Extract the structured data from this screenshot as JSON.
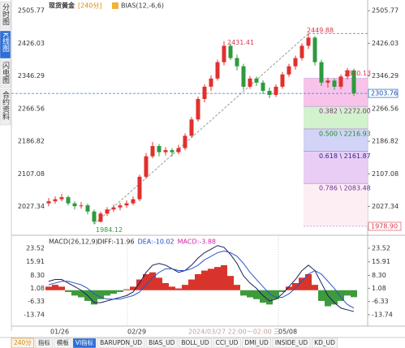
{
  "chart_data": {
    "type": "candlestick",
    "instrument": "现货黄金",
    "period": "[240分]",
    "indicator": "BIAS(12,-6,6)",
    "up_color": "#e0302e",
    "down_color": "#2e9a3e",
    "ylim": [
      1961,
      2522
    ],
    "yticks": [
      2505.77,
      2426.03,
      2346.29,
      2266.56,
      2186.82,
      2107.08,
      2027.34
    ],
    "candles": [
      [
        2035,
        2048,
        2028,
        2040
      ],
      [
        2040,
        2052,
        2034,
        2045
      ],
      [
        2045,
        2058,
        2040,
        2050
      ],
      [
        2050,
        2054,
        2030,
        2035
      ],
      [
        2035,
        2040,
        2020,
        2028
      ],
      [
        2028,
        2038,
        2022,
        2030
      ],
      [
        2030,
        2034,
        2008,
        2015
      ],
      [
        2015,
        2020,
        1984.12,
        1990
      ],
      [
        1990,
        2015,
        1988,
        2010
      ],
      [
        2010,
        2026,
        2004,
        2020
      ],
      [
        2020,
        2032,
        2014,
        2025
      ],
      [
        2025,
        2036,
        2018,
        2030
      ],
      [
        2030,
        2042,
        2024,
        2035
      ],
      [
        2035,
        2052,
        2030,
        2045
      ],
      [
        2045,
        2105,
        2040,
        2100
      ],
      [
        2100,
        2158,
        2095,
        2150
      ],
      [
        2150,
        2185,
        2145,
        2175
      ],
      [
        2175,
        2180,
        2150,
        2160
      ],
      [
        2160,
        2172,
        2152,
        2165
      ],
      [
        2165,
        2170,
        2150,
        2160
      ],
      [
        2160,
        2178,
        2155,
        2170
      ],
      [
        2170,
        2206,
        2165,
        2200
      ],
      [
        2200,
        2246,
        2195,
        2240
      ],
      [
        2240,
        2296,
        2235,
        2290
      ],
      [
        2290,
        2326,
        2282,
        2320
      ],
      [
        2320,
        2348,
        2310,
        2340
      ],
      [
        2340,
        2386,
        2335,
        2380
      ],
      [
        2380,
        2431.41,
        2372,
        2420
      ],
      [
        2420,
        2425,
        2385,
        2390
      ],
      [
        2390,
        2398,
        2360,
        2370
      ],
      [
        2370,
        2376,
        2312,
        2320
      ],
      [
        2320,
        2346,
        2315,
        2340
      ],
      [
        2340,
        2345,
        2322,
        2330
      ],
      [
        2330,
        2336,
        2302,
        2310
      ],
      [
        2310,
        2318,
        2292,
        2300
      ],
      [
        2300,
        2326,
        2295,
        2320
      ],
      [
        2320,
        2356,
        2315,
        2350
      ],
      [
        2350,
        2376,
        2344,
        2370
      ],
      [
        2370,
        2396,
        2362,
        2390
      ],
      [
        2390,
        2426,
        2384,
        2420
      ],
      [
        2420,
        2449.88,
        2412,
        2440
      ],
      [
        2440,
        2444,
        2372,
        2380
      ],
      [
        2380,
        2386,
        2322,
        2330
      ],
      [
        2330,
        2342,
        2318,
        2335
      ],
      [
        2335,
        2340,
        2312,
        2320
      ],
      [
        2320,
        2350,
        2314,
        2345
      ],
      [
        2345,
        2366,
        2338,
        2360
      ],
      [
        2360,
        2364,
        2298,
        2303.76
      ]
    ],
    "fib": {
      "levels": [
        2340.13,
        {
          "value": 2272,
          "label": "0.382 \\ 2272.00"
        },
        {
          "value": 2216.93,
          "label": "0.500 \\ 2216.93"
        },
        {
          "value": 2161.87,
          "label": "0.618 \\ 2161.87"
        },
        {
          "value": 2083.48,
          "label": "0.786 \\ 2083.48"
        },
        {
          "value": 1978.9,
          "label": "1978.90"
        }
      ],
      "colors": [
        "#f7b9e6",
        "#c9f0c4",
        "#c9cdf5",
        "#e6c4f3",
        "#fdebf2"
      ]
    },
    "macd": {
      "title": "MACD(26,12,9)",
      "ylim": [
        -19.2,
        28.06
      ],
      "yticks": [
        23.52,
        15.91,
        {
          "value": 8.3,
          "label": "8.30"
        },
        1.08,
        -6.33,
        -13.74
      ],
      "histogram": {
        "name": "MACD:-3.88",
        "up_color": "#d9342b",
        "down_color": "#3f9a3c",
        "values": [
          2,
          3,
          2,
          -1,
          -3,
          -4,
          -6,
          -8,
          -5,
          -3,
          -2,
          -1,
          0.5,
          2,
          6,
          9,
          10,
          7,
          4,
          2,
          1,
          3,
          6,
          9,
          11,
          12,
          13,
          14,
          8,
          3,
          -3,
          -4,
          -5,
          -7,
          -8,
          -5,
          -1,
          2,
          4,
          7,
          9,
          3,
          -6,
          -9,
          -8,
          -6,
          -3,
          -3.88
        ]
      },
      "series": [
        {
          "name": "DIFF:-11.96",
          "color": "#1c1c5a",
          "values": [
            5,
            6,
            6,
            4,
            2,
            0,
            -3,
            -7,
            -7,
            -6,
            -5,
            -4,
            -3,
            -1,
            4,
            10,
            14,
            15,
            14,
            12,
            10,
            11,
            14,
            18,
            21,
            23,
            25,
            24,
            20,
            15,
            8,
            4,
            1,
            -3,
            -6,
            -5,
            -2,
            2,
            6,
            11,
            14,
            11,
            4,
            -3,
            -7,
            -10,
            -11,
            -11.96
          ]
        },
        {
          "name": "DEA:-10.02",
          "color": "#2b55c8",
          "values": [
            3,
            4,
            5,
            5,
            4,
            3,
            1,
            -2,
            -4,
            -5,
            -5,
            -5,
            -4,
            -3,
            -1,
            3,
            7,
            10,
            12,
            12,
            11,
            11,
            12,
            14,
            17,
            19,
            21,
            22,
            21,
            19,
            15,
            10,
            6,
            2,
            -2,
            -4,
            -4,
            -2,
            1,
            5,
            9,
            11,
            9,
            5,
            1,
            -4,
            -8,
            -10.02
          ]
        }
      ]
    },
    "x_labels": [
      "01/26",
      "02/29",
      "2024/03/27 22:00－02:00 三",
      "05/08"
    ],
    "sidebar": [
      "分时图",
      "K线图",
      "闪电图",
      "合约资料"
    ],
    "tabs": [
      "240分",
      "指标",
      "模板",
      "VI指标",
      "BARUPDN_UD",
      "BIAS_UD",
      "BOLL_UD",
      "CCI_UD",
      "DMI_UD",
      "INSIDE_UD",
      "KD_UD"
    ]
  }
}
